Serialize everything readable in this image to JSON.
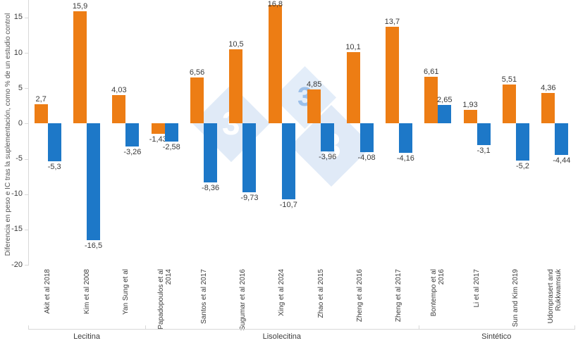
{
  "chart_data": {
    "type": "bar",
    "title": "",
    "xlabel": "",
    "ylabel": "Diferencia en peso e IC tras la suplementación, como % de un estudio control",
    "ylim": [
      -20,
      17.5
    ],
    "yticks": [
      15,
      10,
      5,
      0,
      -5,
      -10,
      -15,
      -20
    ],
    "grid": "off",
    "legend": "none",
    "decimal_separator": ",",
    "categories": [
      "Akit et al 2018",
      "Kim et al 2008",
      "Yan Sung et al",
      "Papadopoulos et al 2014",
      "Santos et al 2017",
      "Sugumar et al 2016",
      "Xing et al 2024",
      "Zhao et al 2015",
      "Zheng et al 2016",
      "Zheng et al 2017",
      "Bontempo et al 2016",
      "Li et al 2017",
      "Sun and Kim 2019",
      "Udomprasert and Rukkwamsuk"
    ],
    "groups": [
      {
        "label": "Lecitina",
        "count": 3
      },
      {
        "label": "Lisolecitina",
        "count": 7
      },
      {
        "label": "Sintético",
        "count": 4
      }
    ],
    "series": [
      {
        "id": "orange-series",
        "color": "#ED7D14",
        "values": [
          2.7,
          15.9,
          4.03,
          -1.43,
          6.56,
          10.5,
          16.8,
          4.85,
          10.1,
          13.7,
          6.61,
          1.93,
          5.51,
          4.36
        ],
        "labels": [
          "2,7",
          "15,9",
          "4,03",
          "-1,43",
          "6,56",
          "10,5",
          "16,8",
          "4,85",
          "10,1",
          "13,7",
          "6,61",
          "1,93",
          "5,51",
          "4,36"
        ]
      },
      {
        "id": "blue-series",
        "color": "#1D78C8",
        "values": [
          -5.3,
          -16.5,
          -3.26,
          -2.58,
          -8.36,
          -9.73,
          -10.7,
          -3.96,
          -4.08,
          -4.16,
          2.65,
          -3.1,
          -5.2,
          -4.44
        ],
        "labels": [
          "-5,3",
          "-16,5",
          "-3,26",
          "-2,58",
          "-8,36",
          "-9,73",
          "-10,7",
          "-3,96",
          "-4,08",
          "-4,16",
          "2,65",
          "-3,1",
          "-5,2",
          "-4,44"
        ]
      }
    ],
    "style": {
      "axis_color": "#d8d8d8",
      "text_color": "#3c3c3c",
      "background": "#ffffff"
    },
    "watermark": {
      "glyphs": [
        "3",
        "3",
        "3"
      ],
      "diamond_color": "#cfdff3",
      "accent_glyph_color": "#9cc0ea",
      "white_glyph_color": "#ffffff"
    }
  }
}
